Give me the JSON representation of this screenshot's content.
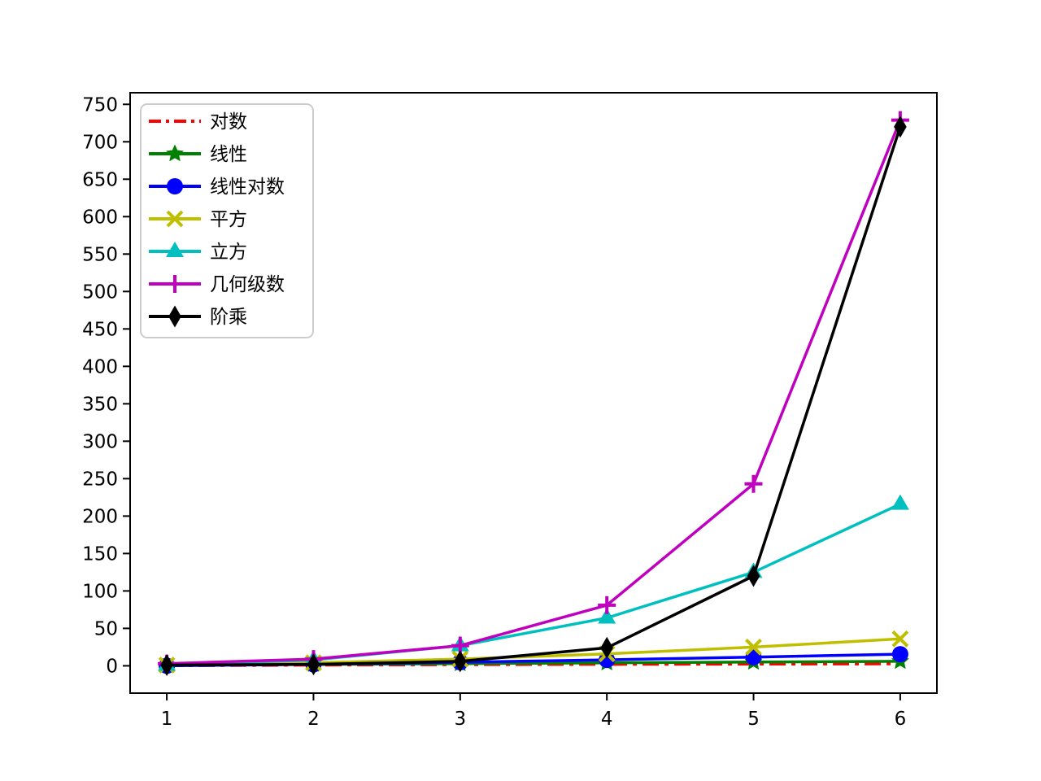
{
  "chart_data": {
    "type": "line",
    "title": "",
    "xlabel": "",
    "ylabel": "",
    "grid": false,
    "legend_position": "upper-left",
    "x": [
      1,
      2,
      3,
      4,
      5,
      6
    ],
    "xticks": [
      "1",
      "2",
      "3",
      "4",
      "5",
      "6"
    ],
    "yticks": [
      0,
      50,
      100,
      150,
      200,
      250,
      300,
      350,
      400,
      450,
      500,
      550,
      600,
      650,
      700,
      750
    ],
    "xlim": [
      0.75,
      6.25
    ],
    "ylim": [
      -36.5,
      765.5
    ],
    "axis_color": "#000000",
    "legend_border_color": "#cccccc",
    "series": [
      {
        "name": "对数",
        "values": [
          0,
          1,
          1.585,
          2,
          2.322,
          2.585
        ],
        "color": "#ff0000",
        "linestyle": "dashdot",
        "marker": "none"
      },
      {
        "name": "线性",
        "values": [
          1,
          2,
          3,
          4,
          5,
          6
        ],
        "color": "#008000",
        "linestyle": "solid",
        "marker": "star"
      },
      {
        "name": "线性对数",
        "values": [
          0,
          2,
          4.755,
          8,
          11.61,
          15.51
        ],
        "color": "#0000ff",
        "linestyle": "solid",
        "marker": "circle"
      },
      {
        "name": "平方",
        "values": [
          1,
          4,
          9,
          16,
          25,
          36
        ],
        "color": "#bfbf00",
        "linestyle": "solid",
        "marker": "x"
      },
      {
        "name": "立方",
        "values": [
          1,
          8,
          27,
          64,
          125,
          216
        ],
        "color": "#00bfbf",
        "linestyle": "solid",
        "marker": "triangle-up"
      },
      {
        "name": "几何级数",
        "values": [
          3,
          9,
          27,
          81,
          243,
          729
        ],
        "color": "#bf00bf",
        "linestyle": "solid",
        "marker": "plus"
      },
      {
        "name": "阶乘",
        "values": [
          1,
          2,
          6,
          24,
          120,
          720
        ],
        "color": "#000000",
        "linestyle": "solid",
        "marker": "thin-diamond"
      }
    ]
  }
}
